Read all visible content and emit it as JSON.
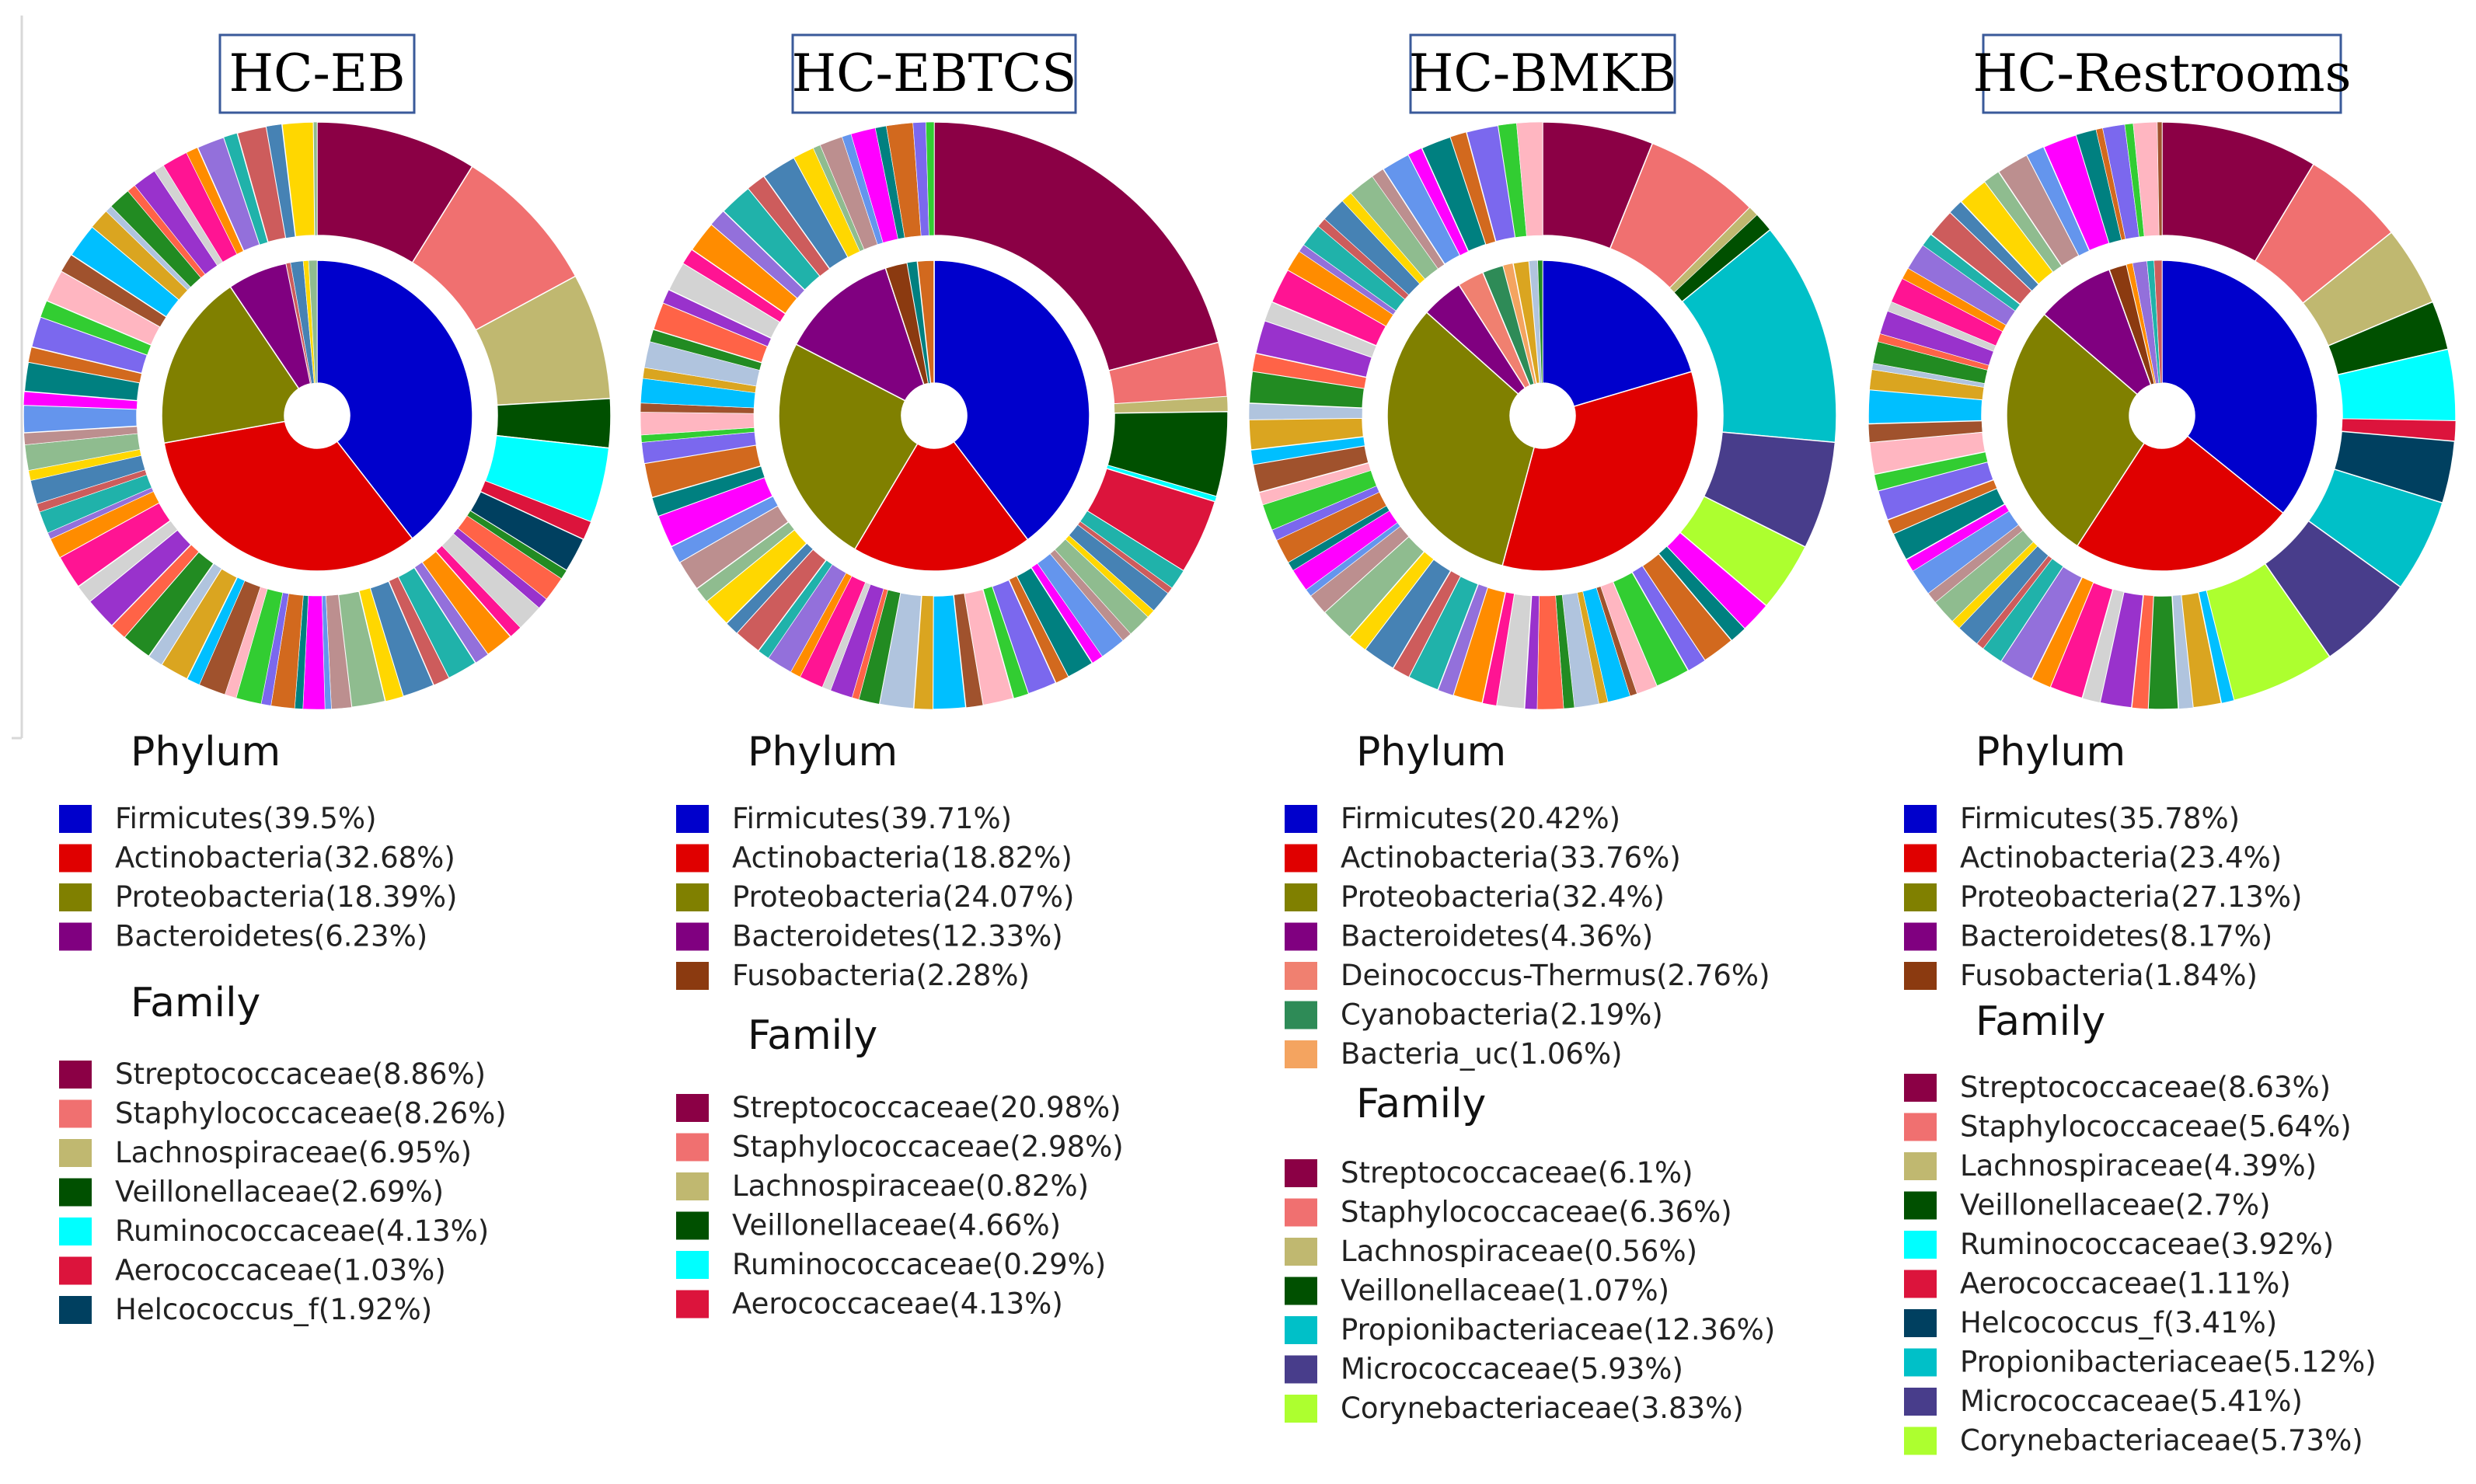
{
  "chart_data": [
    {
      "type": "pie",
      "title": "HC-EB",
      "phylum_heading": "Phylum",
      "family_heading": "Family",
      "phylum": [
        {
          "label": "Firmicutes(39.5%)",
          "name": "Firmicutes",
          "value": 39.5,
          "color": "#0000cc"
        },
        {
          "label": "Actinobacteria(32.68%)",
          "name": "Actinobacteria",
          "value": 32.68,
          "color": "#e00000"
        },
        {
          "label": "Proteobacteria(18.39%)",
          "name": "Proteobacteria",
          "value": 18.39,
          "color": "#808000"
        },
        {
          "label": "Bacteroidetes(6.23%)",
          "name": "Bacteroidetes",
          "value": 6.23,
          "color": "#800080"
        }
      ],
      "family": [
        {
          "label": "Streptococcaceae(8.86%)",
          "name": "Streptococcaceae",
          "value": 8.86,
          "color": "#8b0045"
        },
        {
          "label": "Staphylococcaceae(8.26%)",
          "name": "Staphylococcaceae",
          "value": 8.26,
          "color": "#f07070"
        },
        {
          "label": "Lachnospiraceae(6.95%)",
          "name": "Lachnospiraceae",
          "value": 6.95,
          "color": "#c0b870"
        },
        {
          "label": "Veillonellaceae(2.69%)",
          "name": "Veillonellaceae",
          "value": 2.69,
          "color": "#005000"
        },
        {
          "label": "Ruminococcaceae(4.13%)",
          "name": "Ruminococcaceae",
          "value": 4.13,
          "color": "#00ffff"
        },
        {
          "label": "Aerococcaceae(1.03%)",
          "name": "Aerococcaceae",
          "value": 1.03,
          "color": "#dc143c"
        },
        {
          "label": "Helcococcus_f(1.92%)",
          "name": "Helcococcus_f",
          "value": 1.92,
          "color": "#004060"
        }
      ]
    },
    {
      "type": "pie",
      "title": "HC-EBTCS",
      "phylum_heading": "Phylum",
      "family_heading": "Family",
      "phylum": [
        {
          "label": "Firmicutes(39.71%)",
          "name": "Firmicutes",
          "value": 39.71,
          "color": "#0000cc"
        },
        {
          "label": "Actinobacteria(18.82%)",
          "name": "Actinobacteria",
          "value": 18.82,
          "color": "#e00000"
        },
        {
          "label": "Proteobacteria(24.07%)",
          "name": "Proteobacteria",
          "value": 24.07,
          "color": "#808000"
        },
        {
          "label": "Bacteroidetes(12.33%)",
          "name": "Bacteroidetes",
          "value": 12.33,
          "color": "#800080"
        },
        {
          "label": "Fusobacteria(2.28%)",
          "name": "Fusobacteria",
          "value": 2.28,
          "color": "#8b3a10"
        }
      ],
      "family": [
        {
          "label": "Streptococcaceae(20.98%)",
          "name": "Streptococcaceae",
          "value": 20.98,
          "color": "#8b0045"
        },
        {
          "label": "Staphylococcaceae(2.98%)",
          "name": "Staphylococcaceae",
          "value": 2.98,
          "color": "#f07070"
        },
        {
          "label": "Lachnospiraceae(0.82%)",
          "name": "Lachnospiraceae",
          "value": 0.82,
          "color": "#c0b870"
        },
        {
          "label": "Veillonellaceae(4.66%)",
          "name": "Veillonellaceae",
          "value": 4.66,
          "color": "#005000"
        },
        {
          "label": "Ruminococcaceae(0.29%)",
          "name": "Ruminococcaceae",
          "value": 0.29,
          "color": "#00ffff"
        },
        {
          "label": "Aerococcaceae(4.13%)",
          "name": "Aerococcaceae",
          "value": 4.13,
          "color": "#dc143c"
        }
      ]
    },
    {
      "type": "pie",
      "title": "HC-BMKB",
      "phylum_heading": "Phylum",
      "family_heading": "Family",
      "phylum": [
        {
          "label": "Firmicutes(20.42%)",
          "name": "Firmicutes",
          "value": 20.42,
          "color": "#0000cc"
        },
        {
          "label": "Actinobacteria(33.76%)",
          "name": "Actinobacteria",
          "value": 33.76,
          "color": "#e00000"
        },
        {
          "label": "Proteobacteria(32.4%)",
          "name": "Proteobacteria",
          "value": 32.4,
          "color": "#808000"
        },
        {
          "label": "Bacteroidetes(4.36%)",
          "name": "Bacteroidetes",
          "value": 4.36,
          "color": "#800080"
        },
        {
          "label": "Deinococcus-Thermus(2.76%)",
          "name": "Deinococcus-Thermus",
          "value": 2.76,
          "color": "#f08070"
        },
        {
          "label": "Cyanobacteria(2.19%)",
          "name": "Cyanobacteria",
          "value": 2.19,
          "color": "#2e8b57"
        },
        {
          "label": "Bacteria_uc(1.06%)",
          "name": "Bacteria_uc",
          "value": 1.06,
          "color": "#f4a460"
        }
      ],
      "family": [
        {
          "label": "Streptococcaceae(6.1%)",
          "name": "Streptococcaceae",
          "value": 6.1,
          "color": "#8b0045"
        },
        {
          "label": "Staphylococcaceae(6.36%)",
          "name": "Staphylococcaceae",
          "value": 6.36,
          "color": "#f07070"
        },
        {
          "label": "Lachnospiraceae(0.56%)",
          "name": "Lachnospiraceae",
          "value": 0.56,
          "color": "#c0b870"
        },
        {
          "label": "Veillonellaceae(1.07%)",
          "name": "Veillonellaceae",
          "value": 1.07,
          "color": "#005000"
        },
        {
          "label": "Propionibacteriaceae(12.36%)",
          "name": "Propionibacteriaceae",
          "value": 12.36,
          "color": "#00c0c8"
        },
        {
          "label": "Micrococcaceae(5.93%)",
          "name": "Micrococcaceae",
          "value": 5.93,
          "color": "#483d8b"
        },
        {
          "label": "Corynebacteriaceae(3.83%)",
          "name": "Corynebacteriaceae",
          "value": 3.83,
          "color": "#adff2f"
        }
      ]
    },
    {
      "type": "pie",
      "title": "HC-Restrooms",
      "phylum_heading": "Phylum",
      "family_heading": "Family",
      "phylum": [
        {
          "label": "Firmicutes(35.78%)",
          "name": "Firmicutes",
          "value": 35.78,
          "color": "#0000cc"
        },
        {
          "label": "Actinobacteria(23.4%)",
          "name": "Actinobacteria",
          "value": 23.4,
          "color": "#e00000"
        },
        {
          "label": "Proteobacteria(27.13%)",
          "name": "Proteobacteria",
          "value": 27.13,
          "color": "#808000"
        },
        {
          "label": "Bacteroidetes(8.17%)",
          "name": "Bacteroidetes",
          "value": 8.17,
          "color": "#800080"
        },
        {
          "label": "Fusobacteria(1.84%)",
          "name": "Fusobacteria",
          "value": 1.84,
          "color": "#8b3a10"
        }
      ],
      "family": [
        {
          "label": "Streptococcaceae(8.63%)",
          "name": "Streptococcaceae",
          "value": 8.63,
          "color": "#8b0045"
        },
        {
          "label": "Staphylococcaceae(5.64%)",
          "name": "Staphylococcaceae",
          "value": 5.64,
          "color": "#f07070"
        },
        {
          "label": "Lachnospiraceae(4.39%)",
          "name": "Lachnospiraceae",
          "value": 4.39,
          "color": "#c0b870"
        },
        {
          "label": "Veillonellaceae(2.7%)",
          "name": "Veillonellaceae",
          "value": 2.7,
          "color": "#005000"
        },
        {
          "label": "Ruminococcaceae(3.92%)",
          "name": "Ruminococcaceae",
          "value": 3.92,
          "color": "#00ffff"
        },
        {
          "label": "Aerococcaceae(1.11%)",
          "name": "Aerococcaceae",
          "value": 1.11,
          "color": "#dc143c"
        },
        {
          "label": "Helcococcus_f(3.41%)",
          "name": "Helcococcus_f",
          "value": 3.41,
          "color": "#004060"
        },
        {
          "label": "Propionibacteriaceae(5.12%)",
          "name": "Propionibacteriaceae",
          "value": 5.12,
          "color": "#00c0c8"
        },
        {
          "label": "Micrococcaceae(5.41%)",
          "name": "Micrococcaceae",
          "value": 5.41,
          "color": "#483d8b"
        },
        {
          "label": "Corynebacteriaceae(5.73%)",
          "name": "Corynebacteriaceae",
          "value": 5.73,
          "color": "#adff2f"
        }
      ]
    }
  ],
  "other_colors": [
    "#d3d3d3",
    "#ff1493",
    "#ff8c00",
    "#9370db",
    "#20b2aa",
    "#cd5c5c",
    "#4682b4",
    "#ffd700",
    "#8fbc8f",
    "#bc8f8f",
    "#6495ed",
    "#ff00ff",
    "#008080",
    "#d2691e",
    "#7b68ee",
    "#32cd32",
    "#ffb6c1",
    "#a0522d",
    "#00bfff",
    "#daa520",
    "#b0c4de",
    "#228b22",
    "#ff6347",
    "#9932cc"
  ]
}
